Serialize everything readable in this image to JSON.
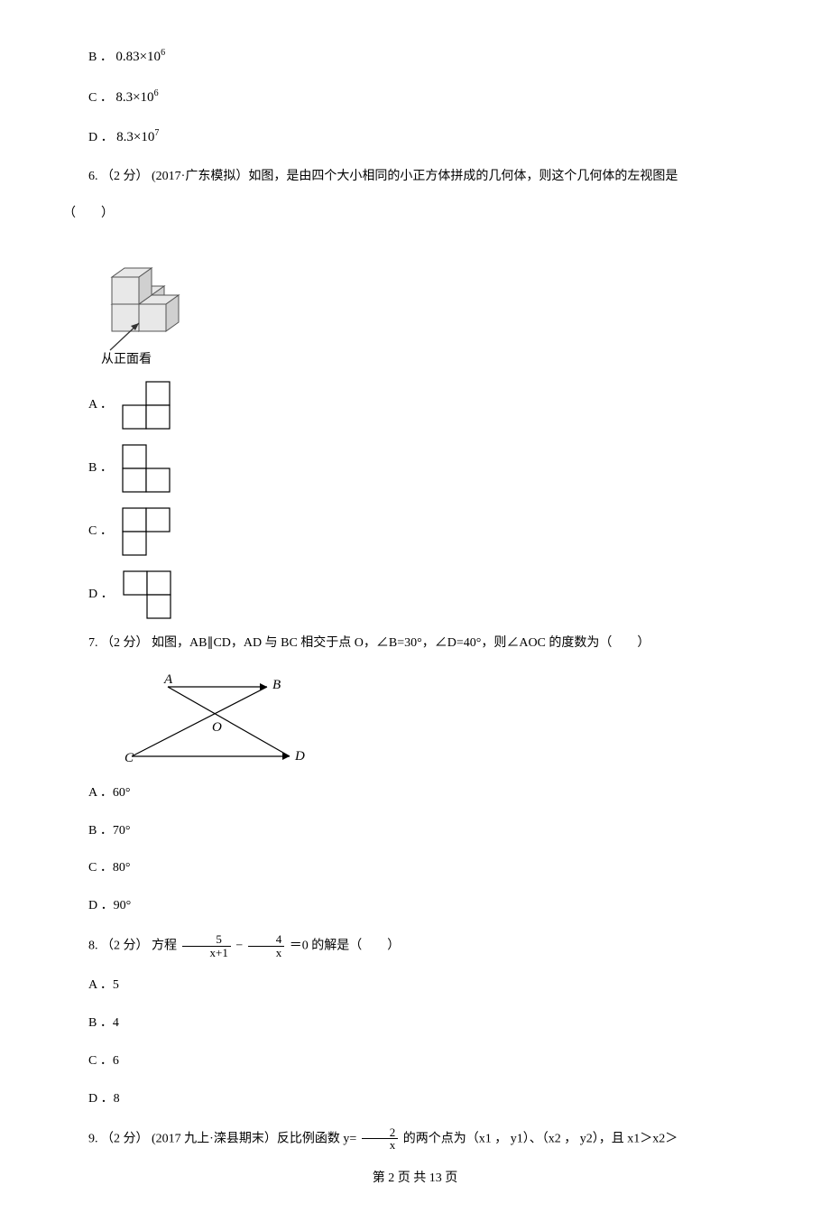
{
  "q5": {
    "optB_prefix": "B ．",
    "optB_sci": "0.83×10",
    "optB_exp": "6",
    "optC_prefix": "C ．",
    "optC_sci": "8.3×10",
    "optC_exp": "6",
    "optD_prefix": "D ．",
    "optD_sci": "8.3×10",
    "optD_exp": "7"
  },
  "q6": {
    "stem_a": "6. （2 分） (2017·广东模拟）如图，是由四个大小相同的小正方体拼成的几何体，则这个几何体的左视图是",
    "stem_b": "（　　）",
    "img_caption": "从正面看",
    "optA": "A ．",
    "optB": "B ．",
    "optC": "C ．",
    "optD": "D ．",
    "svg": {
      "cube_fill": "#e8e8e8",
      "cube_stroke": "#555555",
      "arrow_color": "#333333",
      "grid_stroke": "#000000",
      "grid_fill": "#ffffff"
    }
  },
  "q7": {
    "stem": "7. （2 分） 如图，AB∥CD，AD 与 BC 相交于点 O，∠B=30°，∠D=40°，则∠AOC 的度数为（　　）",
    "labels": {
      "A": "A",
      "B": "B",
      "C": "C",
      "D": "D",
      "O": "O"
    },
    "optA": "A ．60°",
    "optB": "B ．70°",
    "optC": "C ．80°",
    "optD": "D ．90°",
    "svg": {
      "stroke": "#000000"
    }
  },
  "q8": {
    "stem_a": "8. （2 分） 方程",
    "frac1_num": "5",
    "frac1_den": "x+1",
    "mid": " − ",
    "frac2_num": "4",
    "frac2_den": "x",
    "stem_b": " ＝0 的解是（　　）",
    "optA": "A ．5",
    "optB": "B ．4",
    "optC": "C ．6",
    "optD": "D ．8"
  },
  "q9": {
    "stem_a": "9. （2 分） (2017 九上·滦县期末）反比例函数 y= ",
    "frac_num": "2",
    "frac_den": "x",
    "stem_b": " 的两个点为（x1 ， y1）、（x2 ， y2），且 x1＞x2＞"
  },
  "footer": "第 2 页 共 13 页"
}
